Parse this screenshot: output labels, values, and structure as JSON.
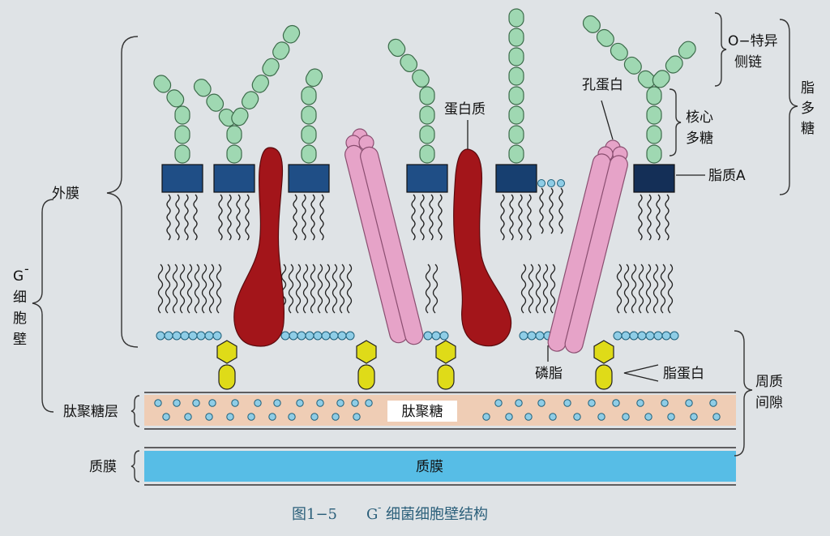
{
  "labels": {
    "outer_membrane": "外膜",
    "cell_wall_g": "G",
    "cell_wall_sup": "-",
    "cell_wall_1": "细",
    "cell_wall_2": "胞",
    "cell_wall_3": "壁",
    "peptidoglycan_layer": "肽聚糖层",
    "plasma_membrane_left": "质膜",
    "protein": "蛋白质",
    "porin": "孔蛋白",
    "o_antigen_1": "O−特异",
    "o_antigen_2": "侧链",
    "core_1": "核心",
    "core_2": "多糖",
    "lipid_a": "脂质A",
    "lps_1": "脂",
    "lps_2": "多",
    "lps_3": "糖",
    "phospholipid": "磷脂",
    "lipoprotein": "脂蛋白",
    "periplasm_1": "周质",
    "periplasm_2": "间隙",
    "peptidoglycan_center": "肽聚糖",
    "plasma_membrane_center": "质膜"
  },
  "caption": {
    "fig": "图1−5",
    "title_pre": "G",
    "title_sup": "-",
    "title_post": "细菌细胞壁结构"
  },
  "colors": {
    "background": "#dfe3e6",
    "sugar_chain": "#9fd8b2",
    "lipid_a": "#1f4e86",
    "protein": "#a3151a",
    "porin": "#e6a3c8",
    "phospholipid_head": "#8fcde6",
    "lipoprotein": "#dfdb18",
    "peptidoglycan": "#efcdb5",
    "plasma_membrane": "#57bde6"
  }
}
